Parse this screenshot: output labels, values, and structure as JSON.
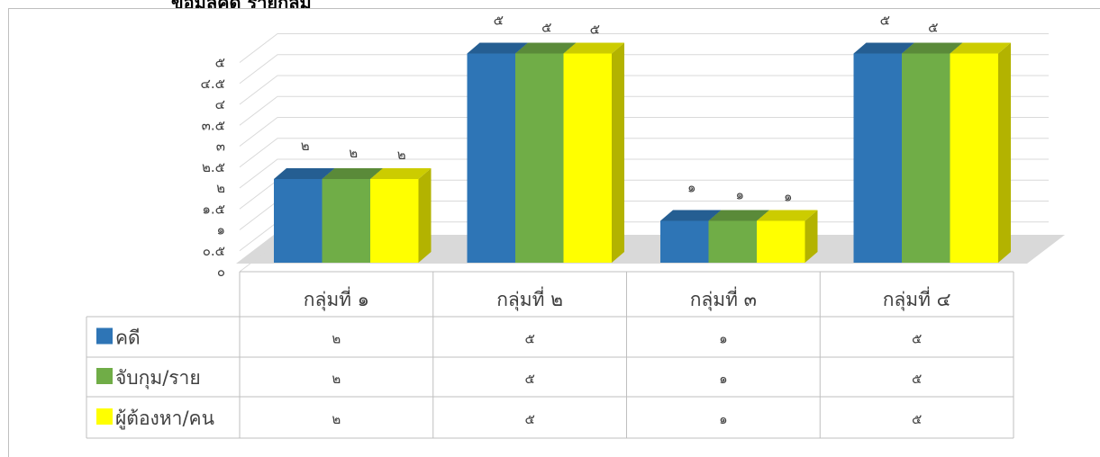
{
  "clipped_title": "ข้อมูลคดี รายกลุ่ม",
  "chart_data": {
    "type": "bar",
    "style": "3d-clustered-column-with-data-table",
    "categories": [
      "กลุ่มที่ ๑",
      "กลุ่มที่ ๒",
      "กลุ่มที่ ๓",
      "กลุ่มที่ ๔"
    ],
    "series": [
      {
        "name": "คดี",
        "values": [
          2,
          5,
          1,
          5
        ],
        "value_labels": [
          "๒",
          "๕",
          "๑",
          "๕"
        ],
        "color": "#2e75b6"
      },
      {
        "name": "จับกุม/ราย",
        "values": [
          2,
          5,
          1,
          5
        ],
        "value_labels": [
          "๒",
          "๕",
          "๑",
          "๕"
        ],
        "color": "#70ad47"
      },
      {
        "name": "ผู้ต้องหา/คน",
        "values": [
          2,
          5,
          1,
          5
        ],
        "value_labels": [
          "๒",
          "๕",
          "๑",
          ""
        ],
        "color": "#ffff00"
      }
    ],
    "ylim": [
      0,
      5
    ],
    "yticks": [
      0,
      0.5,
      1,
      1.5,
      2,
      2.5,
      3,
      3.5,
      4,
      4.5,
      5
    ],
    "ytick_labels": [
      "๐",
      "๐.๕",
      "๑",
      "๑.๕",
      "๒",
      "๒.๕",
      "๓",
      "๓.๕",
      "๔",
      "๔.๕",
      "๕"
    ],
    "grid": true,
    "legend": "data-table-left"
  }
}
